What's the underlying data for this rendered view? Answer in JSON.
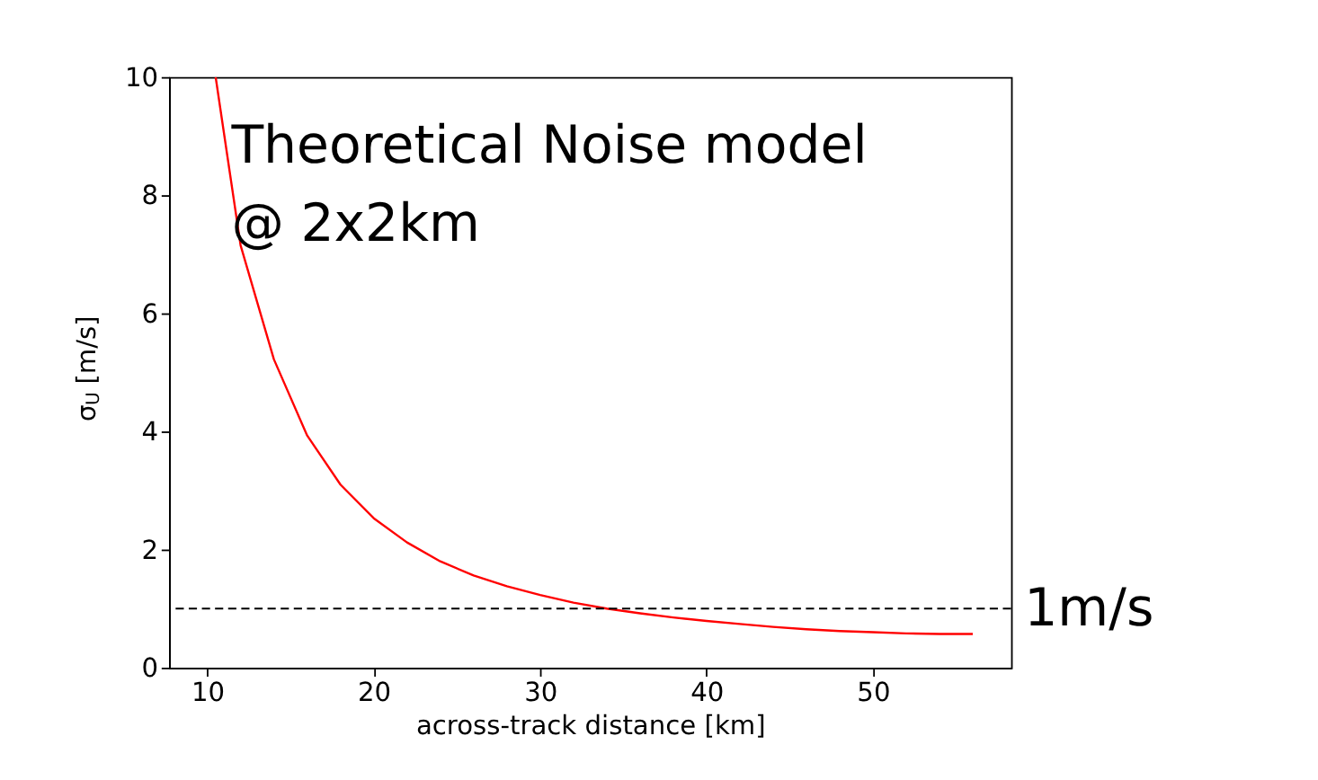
{
  "chart_data": {
    "type": "line",
    "xlabel": "across-track distance [km]",
    "ylabel": "σ$_{U}$ [m/s]",
    "x": [
      10.5,
      12,
      14,
      16,
      18,
      20,
      22,
      24,
      26,
      28,
      30,
      32,
      34,
      36,
      38,
      40,
      42,
      44,
      46,
      48,
      50,
      52,
      54,
      56
    ],
    "series": [
      {
        "color": "#ff0000",
        "values": [
          10,
          7.15,
          5.22,
          3.93,
          3.1,
          2.53,
          2.12,
          1.8,
          1.56,
          1.38,
          1.23,
          1.1,
          1.0,
          0.92,
          0.85,
          0.79,
          0.74,
          0.69,
          0.65,
          0.62,
          0.6,
          0.58,
          0.57,
          0.57
        ]
      }
    ],
    "xlim": [
      7.7,
      58.3
    ],
    "ylim": [
      0,
      10
    ],
    "xticks": [
      10,
      20,
      30,
      40,
      50
    ],
    "yticks": [
      0,
      2,
      4,
      6,
      8,
      10
    ],
    "grid": false,
    "marker": "none",
    "line_style": "solid",
    "ref_lines": [
      {
        "axis": "y",
        "value": 1,
        "label": "1m/s",
        "color": "#000000",
        "line_style": "dashed"
      }
    ],
    "annotations": [
      "Theoretical Noise model",
      "@ 2x2km"
    ]
  }
}
